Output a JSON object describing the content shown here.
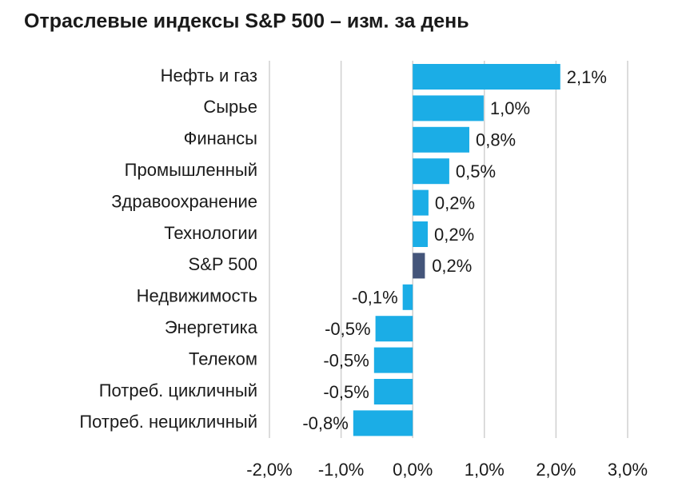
{
  "chart_data": {
    "type": "hbar",
    "title": "Отраслевые индексы S&P 500 – изм. за день",
    "categories": [
      "Нефть и газ",
      "Сырье",
      "Финансы",
      "Промышленный",
      "Здравоохранение",
      "Технологии",
      "S&P 500",
      "Недвижимость",
      "Энергетика",
      "Телеком",
      "Потреб. цикличный",
      "Потреб. нецикличный"
    ],
    "values": [
      2.06,
      0.99,
      0.79,
      0.51,
      0.22,
      0.21,
      0.17,
      -0.14,
      -0.52,
      -0.54,
      -0.54,
      -0.83
    ],
    "value_labels": [
      "2,1%",
      "1,0%",
      "0,8%",
      "0,5%",
      "0,2%",
      "0,2%",
      "0,2%",
      "-0,1%",
      "-0,5%",
      "-0,5%",
      "-0,5%",
      "-0,8%"
    ],
    "colors": [
      "#1badE6",
      "#1badE6",
      "#1badE6",
      "#1badE6",
      "#1badE6",
      "#1badE6",
      "#44557a",
      "#1badE6",
      "#1badE6",
      "#1badE6",
      "#1badE6",
      "#1badE6"
    ],
    "xlim": [
      -2,
      3
    ],
    "xticks": [
      {
        "value": -2,
        "label": "-2,0%"
      },
      {
        "value": -1,
        "label": "-1,0%"
      },
      {
        "value": 0,
        "label": "0,0%"
      },
      {
        "value": 1,
        "label": "1,0%"
      },
      {
        "value": 2,
        "label": "2,0%"
      },
      {
        "value": 3,
        "label": "3,0%"
      }
    ],
    "grid": true
  }
}
